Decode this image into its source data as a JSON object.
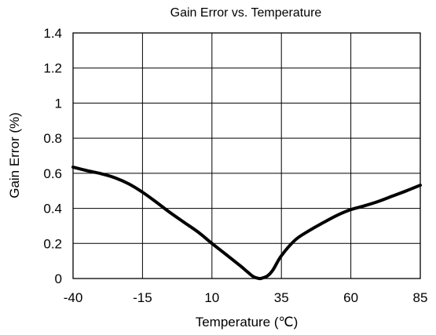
{
  "chart_data": {
    "type": "line",
    "title": "Gain Error vs. Temperature",
    "xlabel": "Temperature (℃)",
    "ylabel": "Gain Error (%)",
    "xlim": [
      -40,
      85
    ],
    "ylim": [
      0,
      1.4
    ],
    "x_ticks": [
      -40,
      -15,
      10,
      35,
      60,
      85
    ],
    "x_tick_labels": [
      "-40",
      "-15",
      "10",
      "35",
      "60",
      "85"
    ],
    "y_ticks": [
      0,
      0.2,
      0.4,
      0.6,
      0.8,
      1.0,
      1.2,
      1.4
    ],
    "y_tick_labels": [
      "0",
      "0.2",
      "0.4",
      "0.6",
      "0.8",
      "1",
      "1.2",
      "1.4"
    ],
    "grid": true,
    "series": [
      {
        "color": "#000000",
        "x": [
          -40,
          -35,
          -30,
          -25,
          -20,
          -15,
          -10,
          -5,
          0,
          5,
          10,
          15,
          20,
          23,
          25,
          27,
          28,
          30,
          32,
          35,
          40,
          45,
          50,
          55,
          60,
          65,
          70,
          75,
          80,
          85
        ],
        "y": [
          0.635,
          0.615,
          0.598,
          0.575,
          0.54,
          0.492,
          0.435,
          0.375,
          0.32,
          0.265,
          0.2,
          0.138,
          0.075,
          0.035,
          0.01,
          0.0,
          0.002,
          0.015,
          0.05,
          0.13,
          0.22,
          0.273,
          0.318,
          0.36,
          0.393,
          0.415,
          0.44,
          0.47,
          0.5,
          0.532
        ]
      }
    ]
  }
}
